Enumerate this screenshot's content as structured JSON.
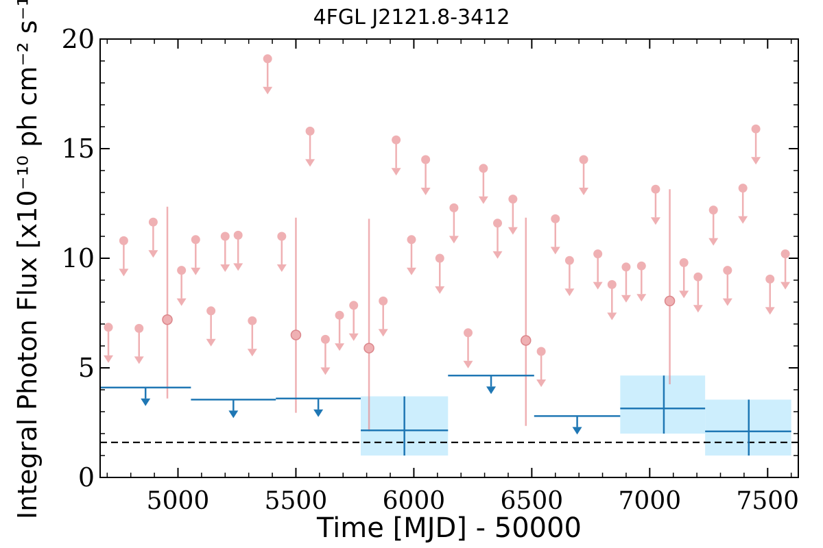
{
  "chart_data": {
    "type": "scatter",
    "title": "4FGL J2121.8-3412",
    "xlabel": "Time [MJD] - 50000",
    "ylabel": "Integral Photon Flux [x10⁻¹⁰ ph cm⁻² s⁻¹]",
    "xlim": [
      4670,
      7630
    ],
    "ylim": [
      0,
      20
    ],
    "x_ticks": [
      5000,
      5500,
      6000,
      6500,
      7000,
      7500
    ],
    "x_tick_labels": [
      "5000",
      "5500",
      "6000",
      "6500",
      "7000",
      "7500"
    ],
    "y_ticks": [
      0,
      5,
      10,
      15,
      20
    ],
    "y_tick_labels": [
      "0",
      "5",
      "10",
      "15",
      "20"
    ],
    "grid": false,
    "reference_line": {
      "y": 1.6,
      "style": "dashed",
      "color": "#000000"
    },
    "series": [
      {
        "color": "#e8868b",
        "upper_limits": [
          {
            "x": 4705,
            "y": 6.85
          },
          {
            "x": 4770,
            "y": 10.8
          },
          {
            "x": 4835,
            "y": 6.8
          },
          {
            "x": 4895,
            "y": 11.65
          },
          {
            "x": 5015,
            "y": 9.45
          },
          {
            "x": 5075,
            "y": 10.85
          },
          {
            "x": 5140,
            "y": 7.6
          },
          {
            "x": 5200,
            "y": 11.0
          },
          {
            "x": 5255,
            "y": 11.05
          },
          {
            "x": 5315,
            "y": 7.15
          },
          {
            "x": 5380,
            "y": 19.1
          },
          {
            "x": 5440,
            "y": 11.0
          },
          {
            "x": 5560,
            "y": 15.8
          },
          {
            "x": 5625,
            "y": 6.3
          },
          {
            "x": 5685,
            "y": 7.4
          },
          {
            "x": 5745,
            "y": 7.85
          },
          {
            "x": 5870,
            "y": 8.05
          },
          {
            "x": 5925,
            "y": 15.4
          },
          {
            "x": 5990,
            "y": 10.85
          },
          {
            "x": 6050,
            "y": 14.5
          },
          {
            "x": 6110,
            "y": 10.0
          },
          {
            "x": 6170,
            "y": 12.3
          },
          {
            "x": 6230,
            "y": 6.6
          },
          {
            "x": 6295,
            "y": 14.1
          },
          {
            "x": 6355,
            "y": 11.6
          },
          {
            "x": 6420,
            "y": 12.7
          },
          {
            "x": 6540,
            "y": 5.75
          },
          {
            "x": 6600,
            "y": 11.8
          },
          {
            "x": 6660,
            "y": 9.9
          },
          {
            "x": 6720,
            "y": 14.5
          },
          {
            "x": 6780,
            "y": 10.2
          },
          {
            "x": 6840,
            "y": 8.8
          },
          {
            "x": 6900,
            "y": 9.6
          },
          {
            "x": 6965,
            "y": 9.65
          },
          {
            "x": 7025,
            "y": 13.15
          },
          {
            "x": 7145,
            "y": 9.8
          },
          {
            "x": 7205,
            "y": 9.15
          },
          {
            "x": 7270,
            "y": 12.2
          },
          {
            "x": 7330,
            "y": 9.45
          },
          {
            "x": 7395,
            "y": 13.2
          },
          {
            "x": 7450,
            "y": 15.9
          },
          {
            "x": 7510,
            "y": 9.05
          },
          {
            "x": 7575,
            "y": 10.2
          }
        ],
        "points": [
          {
            "x": 4955,
            "y": 7.2,
            "ylow": 3.6,
            "yhigh": 12.35
          },
          {
            "x": 5500,
            "y": 6.5,
            "ylow": 2.95,
            "yhigh": 11.85
          },
          {
            "x": 5810,
            "y": 5.9,
            "ylow": 2.1,
            "yhigh": 11.8
          },
          {
            "x": 6475,
            "y": 6.25,
            "ylow": 2.35,
            "yhigh": 11.85
          },
          {
            "x": 7085,
            "y": 8.05,
            "ylow": 4.25,
            "yhigh": 13.15
          }
        ]
      },
      {
        "color": "#1f77b4",
        "band_color": "#cdeefd",
        "upper_limits": [
          {
            "x0": 4670,
            "x1": 5055,
            "y": 4.1
          },
          {
            "x0": 5055,
            "x1": 5415,
            "y": 3.55
          },
          {
            "x0": 5415,
            "x1": 5775,
            "y": 3.6
          },
          {
            "x0": 6145,
            "x1": 6510,
            "y": 4.65
          },
          {
            "x0": 6510,
            "x1": 6875,
            "y": 2.8
          }
        ],
        "points": [
          {
            "x0": 5775,
            "x1": 6145,
            "x": 5960,
            "y": 2.15,
            "ylow": 1.0,
            "yhigh": 3.7
          },
          {
            "x0": 6875,
            "x1": 7235,
            "x": 7060,
            "y": 3.15,
            "ylow": 2.0,
            "yhigh": 4.65
          },
          {
            "x0": 7235,
            "x1": 7600,
            "x": 7420,
            "y": 2.1,
            "ylow": 1.0,
            "yhigh": 3.55
          }
        ]
      }
    ]
  }
}
